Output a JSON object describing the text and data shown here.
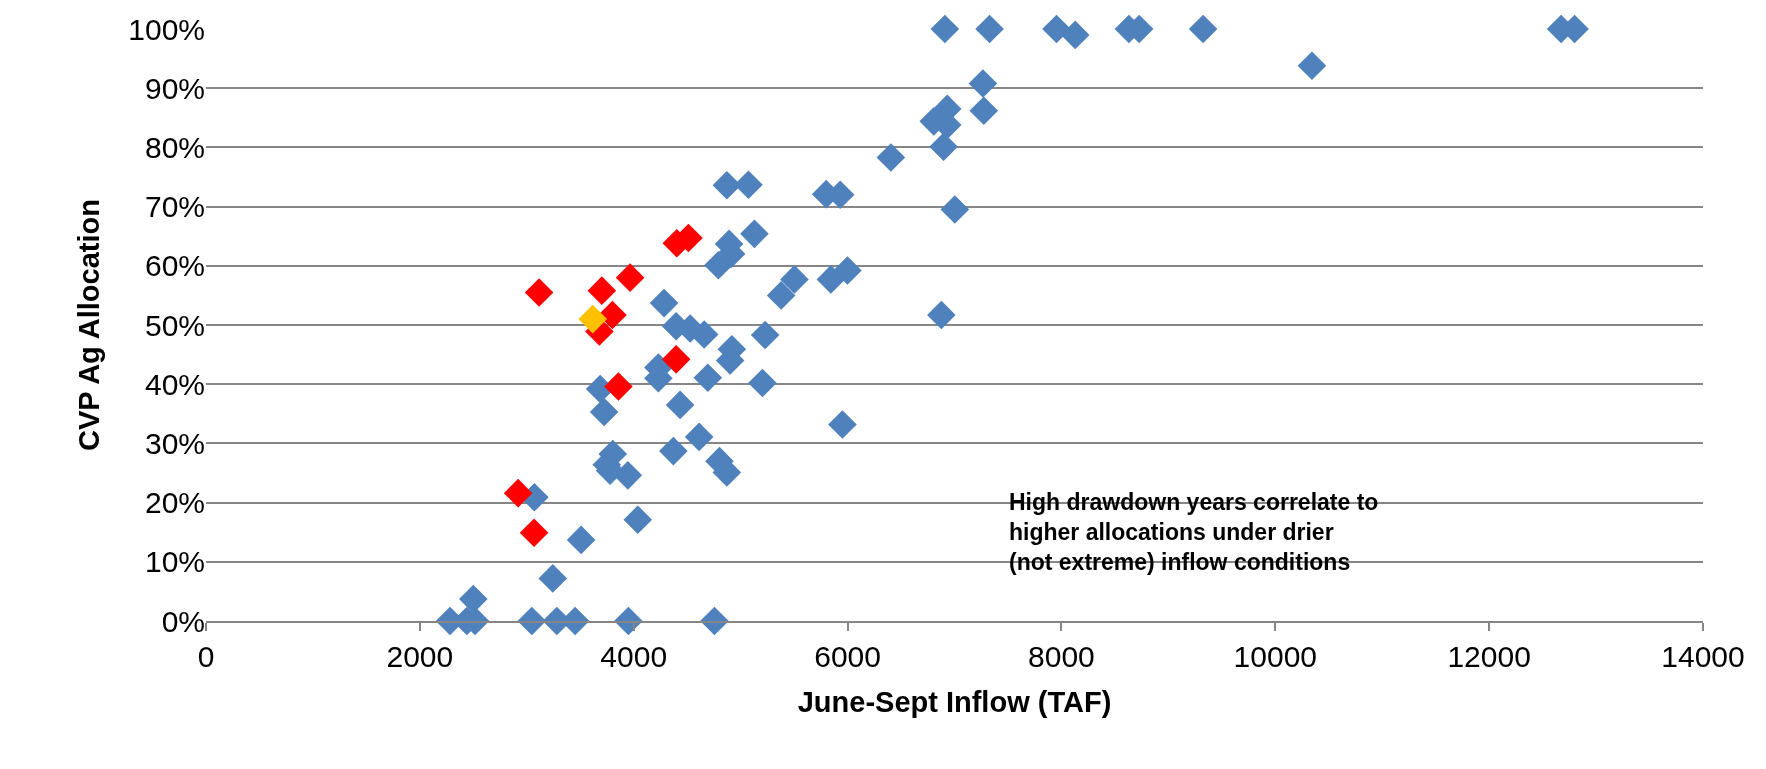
{
  "chart_data": {
    "type": "scatter",
    "xlabel": "June-Sept Inflow (TAF)",
    "ylabel": "CVP Ag Allocation",
    "annotations": [
      "High drawdown years correlate to higher allocations under drier (not extreme) inflow conditions"
    ],
    "series": [
      {
        "color": "#4f81bd",
        "x": [
          6405,
          4871,
          5073,
          5800,
          5931,
          4892,
          5129,
          4792,
          4911,
          5503,
          5379,
          5844,
          5999,
          4284,
          4397,
          4528,
          4659,
          5229,
          4918,
          4902,
          4231,
          4231,
          4693,
          5204,
          3686,
          4434,
          3723,
          5952,
          4612,
          3804,
          4371,
          4802,
          4871,
          3779,
          3945,
          3748,
          3071,
          3508,
          4038,
          3243,
          2500,
          2282,
          2439,
          2516,
          3047,
          3281,
          3452,
          3950,
          4755,
          6910,
          7328,
          7954,
          8129,
          8631,
          8727,
          9325,
          12673,
          12799,
          10343,
          7266,
          6932,
          7274,
          6806,
          6932,
          6898,
          7003,
          6877
        ],
        "values": [
          78.3,
          73.6,
          73.7,
          72.1,
          72,
          63.7,
          65.4,
          60.1,
          62,
          57.7,
          55,
          57.7,
          59.2,
          53.7,
          49.8,
          49.4,
          48.4,
          48.3,
          45.9,
          44,
          42.8,
          41,
          41.1,
          40.2,
          39.2,
          36.5,
          35.3,
          33.2,
          31.1,
          28.2,
          28.7,
          27,
          25.1,
          25.4,
          24.6,
          26.4,
          20.9,
          13.7,
          17.1,
          7.2,
          3.7,
          0,
          0,
          0,
          0,
          0,
          0,
          0,
          0,
          100,
          100,
          100,
          99,
          100,
          100,
          100,
          100,
          100,
          93.8,
          90.8,
          86.5,
          86.2,
          84.4,
          83.8,
          80.1,
          69.5,
          51.7
        ]
      },
      {
        "color": "#ff0000",
        "x": [
          3115,
          3702,
          3966,
          4403,
          4512,
          3801,
          3679,
          4397,
          3857,
          2919,
          3068
        ],
        "values": [
          55.5,
          55.8,
          58,
          63.8,
          64.7,
          51.7,
          48.9,
          44.2,
          39.6,
          21.6,
          14.9
        ]
      },
      {
        "color": "#ffc000",
        "x": [
          3617
        ],
        "values": [
          51
        ]
      }
    ],
    "xlim": [
      0,
      14000
    ],
    "xticks": [
      0,
      2000,
      4000,
      6000,
      8000,
      10000,
      12000,
      14000
    ],
    "ylim": [
      0,
      100
    ],
    "yticks": [
      {
        "value": 0,
        "label": "0%"
      },
      {
        "value": 10,
        "label": "10%"
      },
      {
        "value": 20,
        "label": "20%"
      },
      {
        "value": 30,
        "label": "30%"
      },
      {
        "value": 40,
        "label": "40%"
      },
      {
        "value": 50,
        "label": "50%"
      },
      {
        "value": 60,
        "label": "60%"
      },
      {
        "value": 70,
        "label": "70%"
      },
      {
        "value": 80,
        "label": "80%"
      },
      {
        "value": 90,
        "label": "90%"
      },
      {
        "value": 100,
        "label": "100%"
      }
    ],
    "grid": "y",
    "marker": "diamond"
  }
}
